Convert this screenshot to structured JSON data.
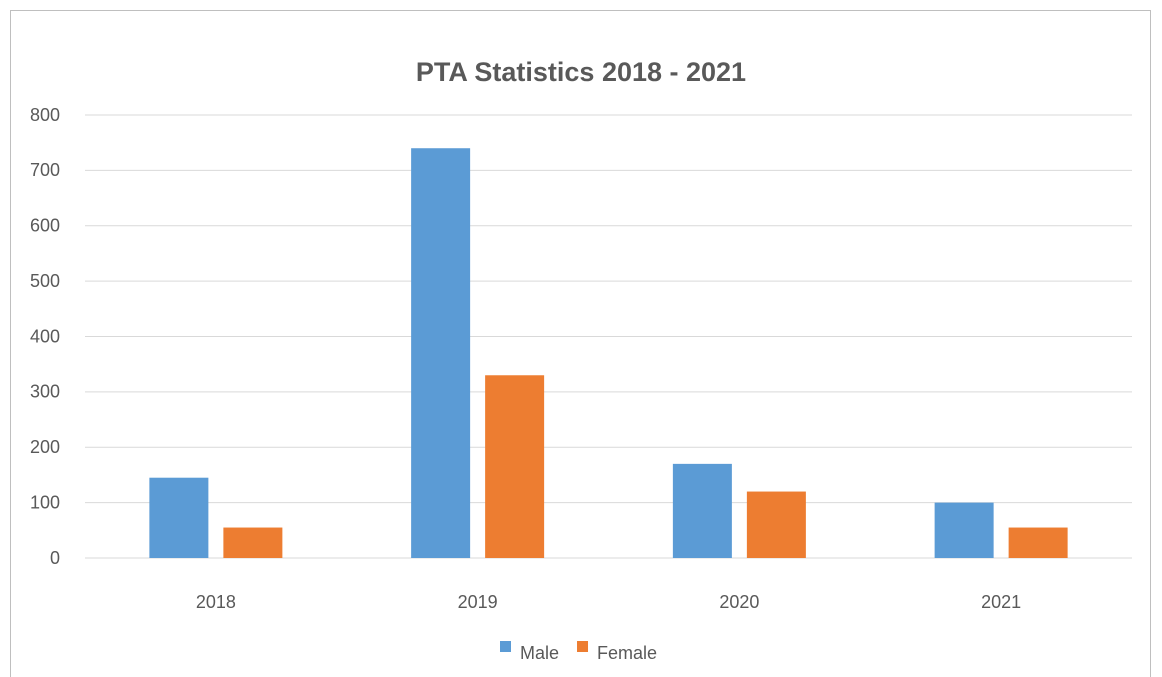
{
  "chart_data": {
    "type": "bar",
    "title": "PTA  Statistics 2018 - 2021",
    "categories": [
      "2018",
      "2019",
      "2020",
      "2021"
    ],
    "series": [
      {
        "name": "Male",
        "color": "#5b9bd5",
        "values": [
          145,
          740,
          170,
          100
        ]
      },
      {
        "name": "Female",
        "color": "#ed7d31",
        "values": [
          55,
          330,
          120,
          55
        ]
      }
    ],
    "ylim": [
      0,
      800
    ],
    "yticks": [
      0,
      100,
      200,
      300,
      400,
      500,
      600,
      700,
      800
    ],
    "grid": true,
    "legend": "bottom"
  }
}
